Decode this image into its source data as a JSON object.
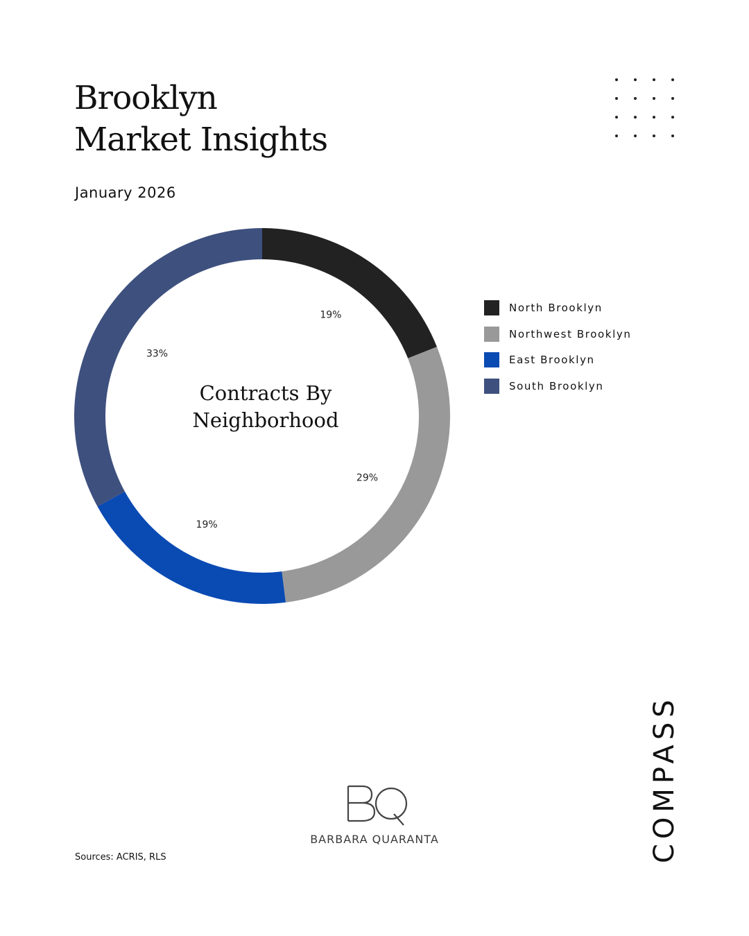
{
  "header": {
    "title_line1": "Brooklyn",
    "title_line2": "Market Insights",
    "date": "January 2026"
  },
  "chart_data": {
    "type": "pie",
    "title": "Contracts By Neighborhood",
    "title_line1": "Contracts By",
    "title_line2": "Neighborhood",
    "legend_position": "right",
    "series": [
      {
        "name": "North Brooklyn",
        "value": 19,
        "label": "19%",
        "color": "#222222"
      },
      {
        "name": "Northwest Brooklyn",
        "value": 29,
        "label": "29%",
        "color": "#999999"
      },
      {
        "name": "East Brooklyn",
        "value": 19,
        "label": "19%",
        "color": "#0a4ab3"
      },
      {
        "name": "South Brooklyn",
        "value": 33,
        "label": "33%",
        "color": "#3e507e"
      }
    ]
  },
  "footer": {
    "sources": "Sources: ACRIS, RLS",
    "agent_name": "BARBARA QUARANTA",
    "agent_monogram": "BQ",
    "brand": "COMPASS"
  }
}
